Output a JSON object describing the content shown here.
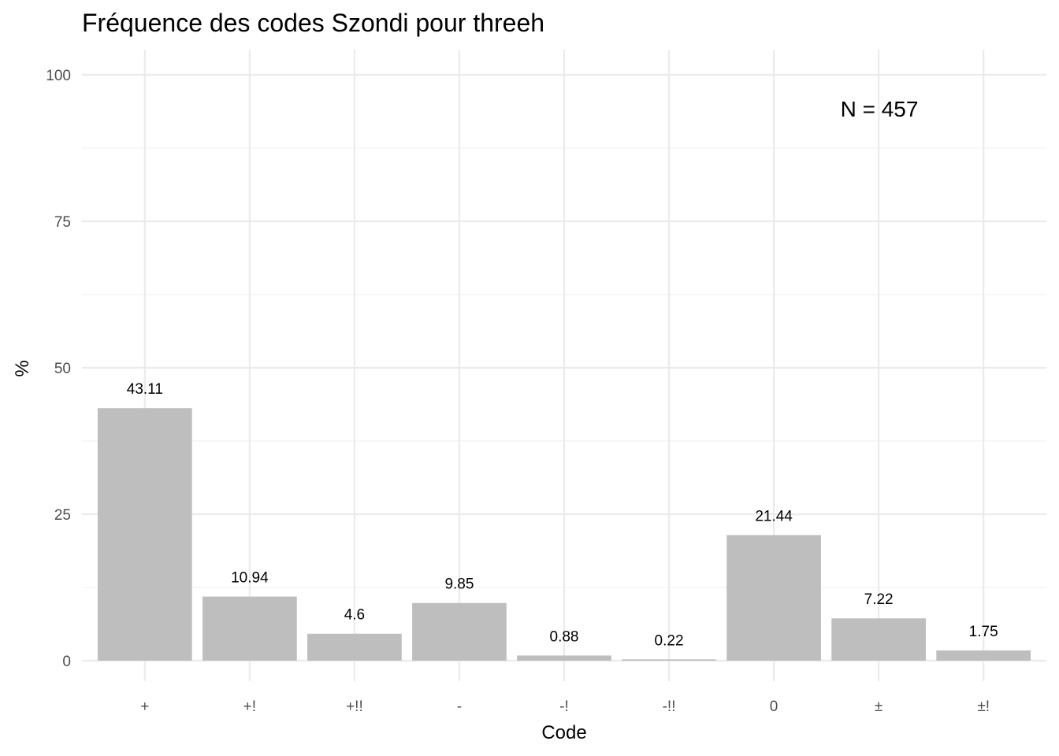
{
  "chart_data": {
    "type": "bar",
    "title": "Fréquence des codes Szondi pour threeh",
    "xlabel": "Code",
    "ylabel": "%",
    "categories": [
      "+",
      "+!",
      "+!!",
      "-",
      "-!",
      "-!!",
      "0",
      "±",
      "±!"
    ],
    "values": [
      43.11,
      10.94,
      4.6,
      9.85,
      0.88,
      0.22,
      21.44,
      7.22,
      1.75
    ],
    "data_labels": [
      "43.11",
      "10.94",
      "4.6",
      "9.85",
      "0.88",
      "0.22",
      "21.44",
      "7.22",
      "1.75"
    ],
    "ylim": [
      0,
      100
    ],
    "yticks": [
      0,
      25,
      50,
      75,
      100
    ],
    "grid": true,
    "legend": "none",
    "annotation": "N = 457",
    "bar_color": "#bebebe"
  }
}
